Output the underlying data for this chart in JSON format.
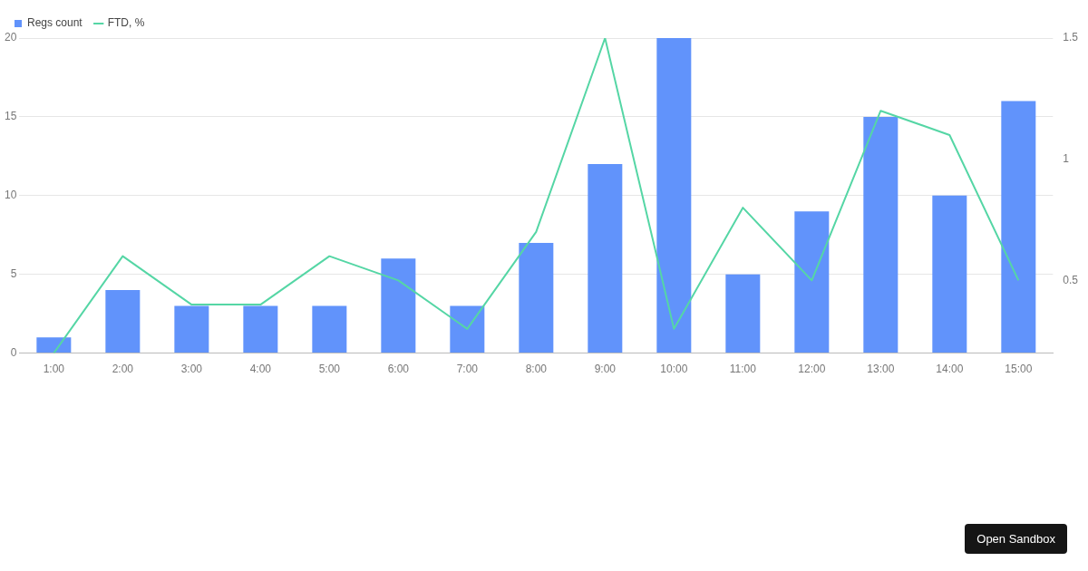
{
  "chart_data": {
    "type": "bar",
    "categories": [
      "1:00",
      "2:00",
      "3:00",
      "4:00",
      "5:00",
      "6:00",
      "7:00",
      "8:00",
      "9:00",
      "10:00",
      "11:00",
      "12:00",
      "13:00",
      "14:00",
      "15:00"
    ],
    "series": [
      {
        "name": "Regs count",
        "color": "#6193fb",
        "values": [
          1,
          4,
          3,
          3,
          3,
          6,
          3,
          7,
          12,
          20,
          5,
          9,
          15,
          10,
          16
        ]
      },
      {
        "name": "FTD, %",
        "type": "line",
        "axis": "y2",
        "color": "#55d6a5",
        "values": [
          0.2,
          0.6,
          0.4,
          0.4,
          0.6,
          0.5,
          0.3,
          0.7,
          1.5,
          0.3,
          0.8,
          0.5,
          1.2,
          1.1,
          0.5
        ]
      }
    ],
    "ylim": [
      0,
      20
    ],
    "yticks": [
      0,
      5,
      10,
      15,
      20
    ],
    "y2lim": [
      0.2,
      1.5
    ],
    "y2ticks": [
      0.5,
      1,
      1.5
    ],
    "grid": "y",
    "legend": "top left",
    "marker": "none",
    "annotations": [
      "Open Sandbox"
    ]
  }
}
